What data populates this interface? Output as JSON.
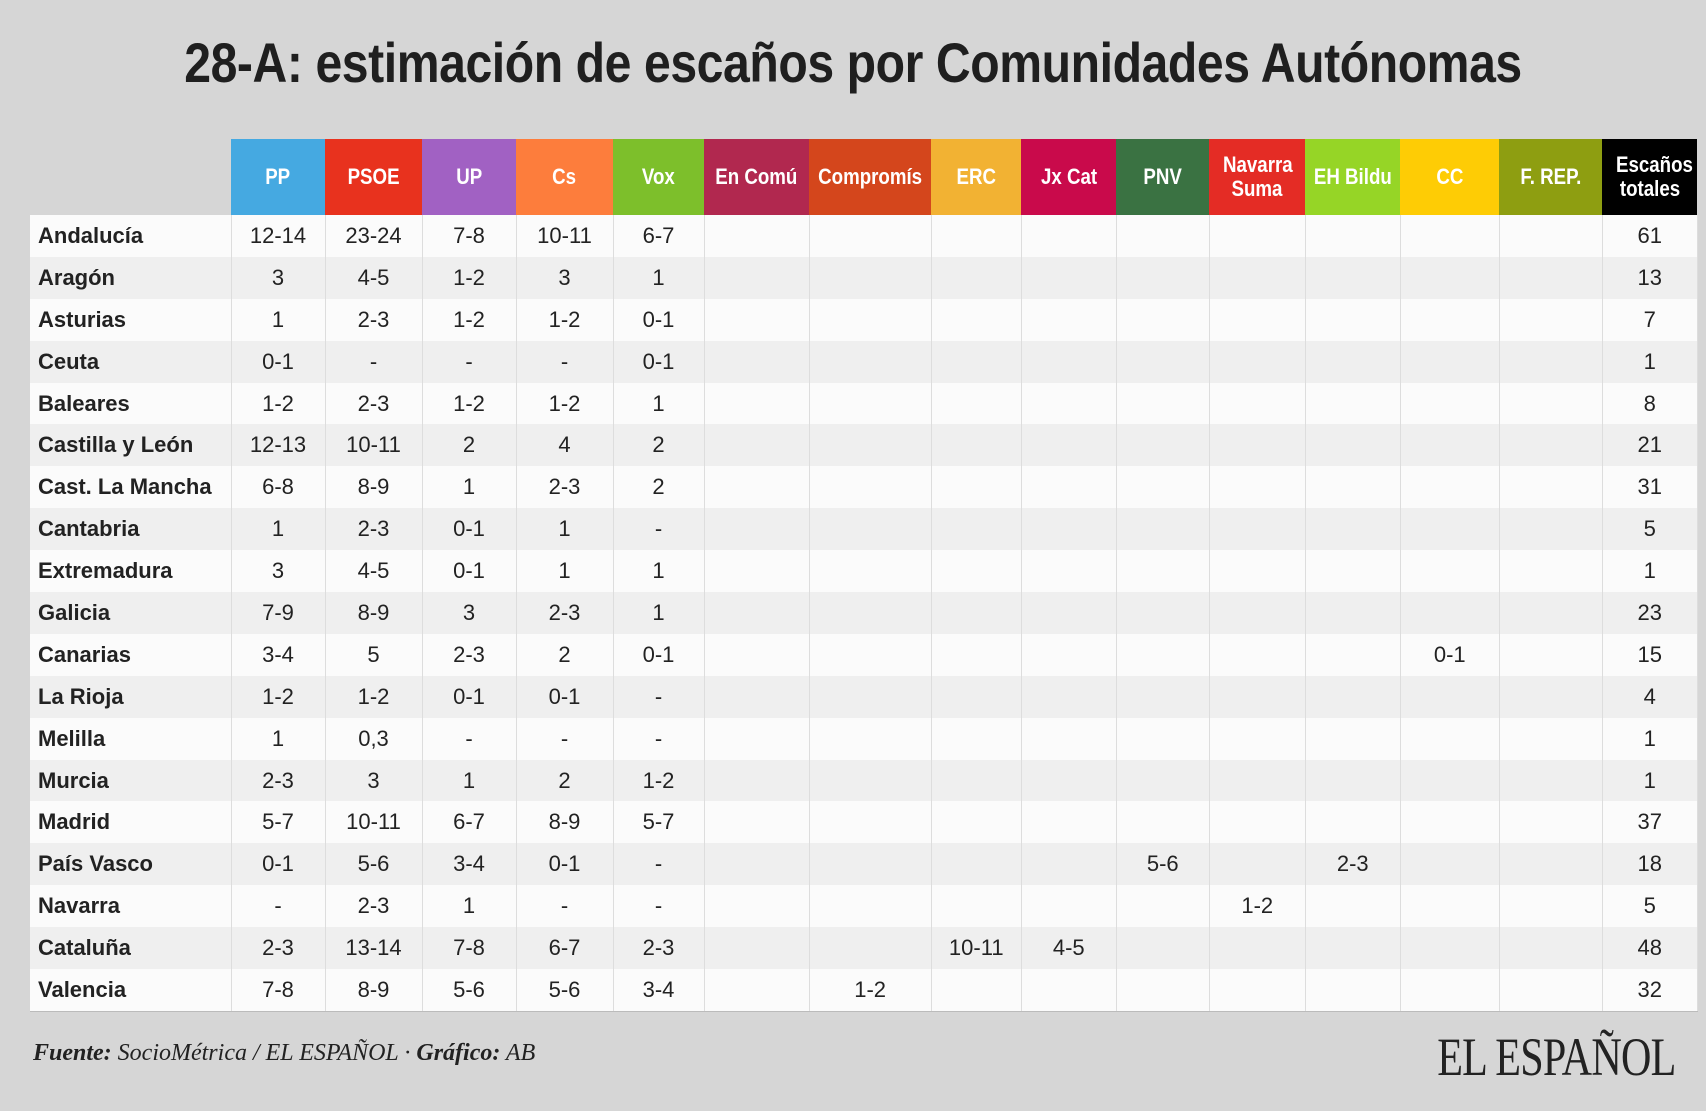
{
  "title": "28-A: estimación de escaños por Comunidades Autónomas",
  "columns": [
    {
      "label": "PP",
      "color": "#45a9e1"
    },
    {
      "label": "PSOE",
      "color": "#e8321e"
    },
    {
      "label": "UP",
      "color": "#a161c3"
    },
    {
      "label": "Cs",
      "color": "#fd7d3c"
    },
    {
      "label": "Vox",
      "color": "#7dbf2b"
    },
    {
      "label": "En Comú",
      "color": "#b1284f"
    },
    {
      "label": "Compromís",
      "color": "#d4461c"
    },
    {
      "label": "ERC",
      "color": "#f2b233"
    },
    {
      "label": "Jx Cat",
      "color": "#c90a4b"
    },
    {
      "label": "PNV",
      "color": "#3a7242"
    },
    {
      "label": "Navarra Suma",
      "color": "#e42c25"
    },
    {
      "label": "EH Bildu",
      "color": "#96d526"
    },
    {
      "label": "CC",
      "color": "#fecc05"
    },
    {
      "label": "F. REP.",
      "color": "#8e9e11"
    },
    {
      "label": "Escaños totales",
      "color": "#000000"
    }
  ],
  "rows": [
    {
      "region": "Andalucía",
      "cells": [
        "12-14",
        "23-24",
        "7-8",
        "10-11",
        "6-7",
        "",
        "",
        "",
        "",
        "",
        "",
        "",
        "",
        "",
        "61"
      ]
    },
    {
      "region": "Aragón",
      "cells": [
        "3",
        "4-5",
        "1-2",
        "3",
        "1",
        "",
        "",
        "",
        "",
        "",
        "",
        "",
        "",
        "",
        "13"
      ]
    },
    {
      "region": "Asturias",
      "cells": [
        "1",
        "2-3",
        "1-2",
        "1-2",
        "0-1",
        "",
        "",
        "",
        "",
        "",
        "",
        "",
        "",
        "",
        "7"
      ]
    },
    {
      "region": "Ceuta",
      "cells": [
        "0-1",
        "-",
        "-",
        "-",
        "0-1",
        "",
        "",
        "",
        "",
        "",
        "",
        "",
        "",
        "",
        "1"
      ]
    },
    {
      "region": "Baleares",
      "cells": [
        "1-2",
        "2-3",
        "1-2",
        "1-2",
        "1",
        "",
        "",
        "",
        "",
        "",
        "",
        "",
        "",
        "",
        "8"
      ]
    },
    {
      "region": "Castilla y León",
      "cells": [
        "12-13",
        "10-11",
        "2",
        "4",
        "2",
        "",
        "",
        "",
        "",
        "",
        "",
        "",
        "",
        "",
        "21"
      ]
    },
    {
      "region": "Cast. La Mancha",
      "cells": [
        "6-8",
        "8-9",
        "1",
        "2-3",
        "2",
        "",
        "",
        "",
        "",
        "",
        "",
        "",
        "",
        "",
        "31"
      ]
    },
    {
      "region": "Cantabria",
      "cells": [
        "1",
        "2-3",
        "0-1",
        "1",
        "-",
        "",
        "",
        "",
        "",
        "",
        "",
        "",
        "",
        "",
        "5"
      ]
    },
    {
      "region": "Extremadura",
      "cells": [
        "3",
        "4-5",
        "0-1",
        "1",
        "1",
        "",
        "",
        "",
        "",
        "",
        "",
        "",
        "",
        "",
        "1"
      ]
    },
    {
      "region": "Galicia",
      "cells": [
        "7-9",
        "8-9",
        "3",
        "2-3",
        "1",
        "",
        "",
        "",
        "",
        "",
        "",
        "",
        "",
        "",
        "23"
      ]
    },
    {
      "region": "Canarias",
      "cells": [
        "3-4",
        "5",
        "2-3",
        "2",
        "0-1",
        "",
        "",
        "",
        "",
        "",
        "",
        "",
        "0-1",
        "",
        "15"
      ]
    },
    {
      "region": "La Rioja",
      "cells": [
        "1-2",
        "1-2",
        "0-1",
        "0-1",
        "-",
        "",
        "",
        "",
        "",
        "",
        "",
        "",
        "",
        "",
        "4"
      ]
    },
    {
      "region": "Melilla",
      "cells": [
        "1",
        "0,3",
        "-",
        "-",
        "-",
        "",
        "",
        "",
        "",
        "",
        "",
        "",
        "",
        "",
        "1"
      ]
    },
    {
      "region": "Murcia",
      "cells": [
        "2-3",
        "3",
        "1",
        "2",
        "1-2",
        "",
        "",
        "",
        "",
        "",
        "",
        "",
        "",
        "",
        "1"
      ]
    },
    {
      "region": "Madrid",
      "cells": [
        "5-7",
        "10-11",
        "6-7",
        "8-9",
        "5-7",
        "",
        "",
        "",
        "",
        "",
        "",
        "",
        "",
        "",
        "37"
      ]
    },
    {
      "region": "País Vasco",
      "cells": [
        "0-1",
        "5-6",
        "3-4",
        "0-1",
        "-",
        "",
        "",
        "",
        "",
        "5-6",
        "",
        "2-3",
        "",
        "",
        "18"
      ]
    },
    {
      "region": "Navarra",
      "cells": [
        "-",
        "2-3",
        "1",
        "-",
        "-",
        "",
        "",
        "",
        "",
        "",
        "1-2",
        "",
        "",
        "",
        "5"
      ]
    },
    {
      "region": "Cataluña",
      "cells": [
        "2-3",
        "13-14",
        "7-8",
        "6-7",
        "2-3",
        "",
        "",
        "10-11",
        "4-5",
        "",
        "",
        "",
        "",
        "",
        "48"
      ]
    },
    {
      "region": "Valencia",
      "cells": [
        "7-8",
        "8-9",
        "5-6",
        "5-6",
        "3-4",
        "",
        "1-2",
        "",
        "",
        "",
        "",
        "",
        "",
        "",
        "32"
      ]
    }
  ],
  "footer": {
    "source_label": "Fuente:",
    "source_text": " SocioMétrica / EL ESPAÑOL · ",
    "credit_label": "Gráfico:",
    "credit_text": " AB"
  },
  "logo": "EL ESPAÑOL"
}
